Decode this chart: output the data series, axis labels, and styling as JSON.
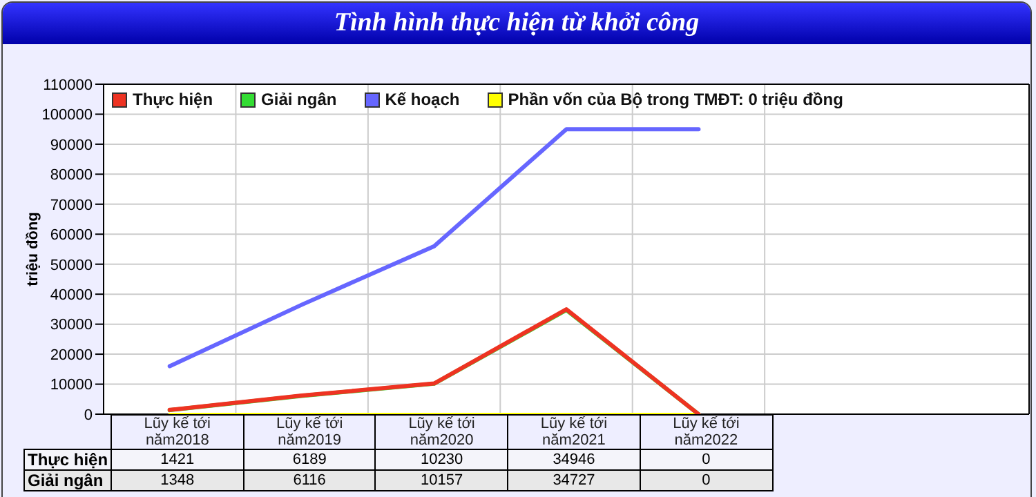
{
  "chart_data": {
    "type": "line",
    "title": "Tình hình thực hiện từ khởi công",
    "ylabel": "triệu đồng",
    "categories": [
      "Lũy kế tới năm2018",
      "Lũy kế tới năm2019",
      "Lũy kế tới năm2020",
      "Lũy kế tới năm2021",
      "Lũy kế tới năm2022",
      null,
      null
    ],
    "series": [
      {
        "name": "Phần vốn của Bộ trong TMĐT: 0 triệu đồng",
        "color": "#ffff00",
        "values": [
          0,
          0,
          0,
          0,
          0,
          null,
          null
        ]
      },
      {
        "name": "Kế hoạch",
        "color": "#6666ff",
        "values": [
          16000,
          36500,
          56000,
          95000,
          95000,
          null,
          null
        ]
      },
      {
        "name": "Giải ngân",
        "color": "#33dd33",
        "values": [
          1348,
          6116,
          10157,
          34727,
          0,
          null,
          null
        ],
        "value_labels": [
          "1348",
          "6116",
          "10157",
          "34727",
          "0",
          null,
          null
        ]
      },
      {
        "name": "Thực hiện",
        "color": "#ee3322",
        "values": [
          1421,
          6189,
          10230,
          34946,
          0,
          null,
          null
        ],
        "value_labels": [
          "1421",
          "6189",
          "10230",
          "34946",
          "0",
          null,
          null
        ]
      }
    ],
    "ylim": [
      0,
      110000
    ],
    "yticks": [
      0,
      10000,
      20000,
      30000,
      40000,
      50000,
      60000,
      70000,
      80000,
      90000,
      100000,
      110000
    ],
    "grid": true,
    "legend": "top left",
    "marker": "none",
    "line_style": "solid"
  }
}
